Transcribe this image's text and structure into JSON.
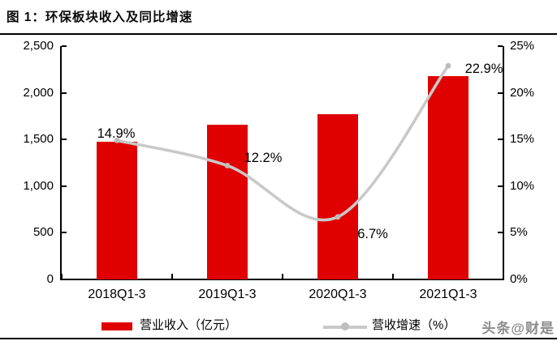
{
  "title": "图 1：环保板块收入及同比增速",
  "watermark": "头条@财是",
  "colors": {
    "bar": "#e00000",
    "line": "#c9c9c9",
    "marker": "#bdbdbd",
    "text": "#000000",
    "watermark": "#8c8c8c"
  },
  "chart_data": {
    "type": "bar",
    "title": "图 1：环保板块收入及同比增速",
    "categories": [
      "2018Q1-3",
      "2019Q1-3",
      "2020Q1-3",
      "2021Q1-3"
    ],
    "series": [
      {
        "name": "营业收入（亿元）",
        "type": "bar",
        "axis": "left",
        "color": "#e00000",
        "values": [
          1480,
          1660,
          1775,
          2180
        ]
      },
      {
        "name": "营收增速（%）",
        "type": "line",
        "axis": "right",
        "color": "#c9c9c9",
        "values": [
          14.9,
          12.2,
          6.7,
          22.9
        ],
        "point_labels": [
          "14.9%",
          "12.2%",
          "6.7%",
          "22.9%"
        ]
      }
    ],
    "left_axis": {
      "min": 0,
      "max": 2500,
      "step": 500,
      "tick_labels": [
        "0",
        "500",
        "1,000",
        "1,500",
        "2,000",
        "2,500"
      ]
    },
    "right_axis": {
      "min": 0,
      "max": 25,
      "step": 5,
      "tick_labels": [
        "0%",
        "5%",
        "10%",
        "15%",
        "20%",
        "25%"
      ]
    },
    "grid": false,
    "legend_position": "bottom"
  }
}
